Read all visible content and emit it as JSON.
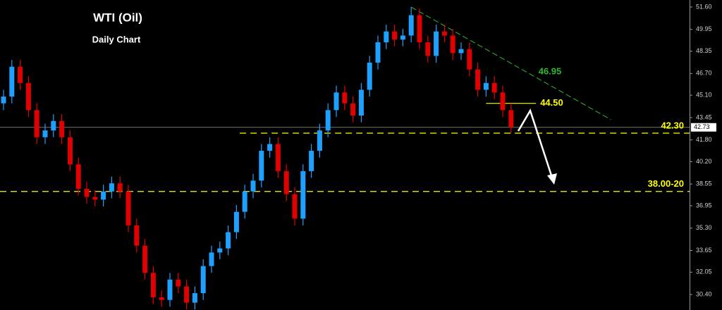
{
  "chart_data": {
    "type": "candlestick",
    "title": "WTI (Oil)",
    "subtitle": "Daily Chart",
    "up_color": "#1ea0ff",
    "down_color": "#e00000",
    "ylim": [
      29.26,
      52.12
    ],
    "yticks": [
      {
        "value": 51.6,
        "label": "51.60"
      },
      49.95,
      48.35,
      {
        "value": 46.7,
        "label": "46.70"
      },
      {
        "value": 45.1,
        "label": "45.10"
      },
      43.45,
      {
        "value": 41.8,
        "label": "41.80"
      },
      {
        "value": 40.2,
        "label": "40.20"
      },
      38.55,
      36.95,
      {
        "value": 35.3,
        "label": "35.30"
      },
      33.65,
      32.05,
      {
        "value": 30.4,
        "label": "30.40"
      }
    ],
    "open": [
      44.5,
      45.0,
      47.2,
      46.0,
      44.0,
      42.0,
      42.5,
      43.2,
      42.0,
      40.0,
      38.2,
      37.6,
      37.4,
      38.0,
      38.6,
      38.0,
      35.5,
      34.0,
      32.0,
      30.2,
      30.0,
      31.5,
      31.0,
      29.8,
      30.5,
      32.5,
      33.5,
      33.8,
      35.0,
      36.5,
      38.0,
      38.8,
      41.0,
      41.5,
      39.5,
      37.8,
      36.0,
      39.5,
      41.0,
      42.5,
      44.0,
      45.3,
      44.5,
      43.6,
      45.5,
      47.5,
      49.0,
      49.8,
      49.2,
      49.5,
      51.0,
      49.0,
      48.0,
      49.8,
      49.5,
      48.2,
      48.5,
      47.0,
      45.5,
      46.0,
      45.3,
      44.0
    ],
    "high": [
      45.5,
      47.7,
      47.7,
      46.5,
      44.5,
      43.0,
      43.7,
      43.7,
      42.5,
      40.5,
      38.7,
      38.1,
      38.5,
      39.1,
      39.1,
      38.5,
      36.0,
      34.5,
      32.5,
      30.7,
      32.0,
      32.0,
      31.5,
      31.0,
      33.0,
      34.0,
      34.3,
      35.5,
      37.0,
      38.5,
      39.3,
      41.5,
      42.0,
      42.0,
      40.0,
      38.3,
      40.0,
      41.5,
      43.0,
      44.5,
      45.8,
      45.8,
      45.0,
      46.0,
      48.0,
      49.5,
      50.3,
      50.3,
      50.0,
      51.6,
      51.5,
      49.5,
      50.3,
      50.3,
      50.0,
      49.0,
      49.0,
      47.5,
      46.5,
      46.5,
      45.8,
      44.5
    ],
    "low": [
      44.0,
      44.5,
      45.5,
      43.5,
      41.5,
      41.5,
      42.0,
      41.5,
      39.5,
      37.7,
      37.1,
      36.9,
      36.9,
      37.5,
      37.5,
      35.0,
      33.5,
      31.5,
      29.7,
      29.5,
      29.5,
      30.5,
      29.3,
      29.3,
      30.0,
      32.0,
      33.0,
      33.3,
      34.5,
      36.0,
      37.5,
      38.3,
      40.5,
      39.0,
      37.3,
      35.5,
      35.5,
      39.0,
      40.5,
      42.0,
      43.5,
      44.0,
      43.1,
      43.1,
      45.0,
      47.0,
      48.5,
      48.7,
      48.7,
      49.0,
      48.5,
      47.5,
      47.5,
      49.0,
      47.7,
      47.7,
      46.5,
      45.0,
      45.0,
      44.8,
      43.5,
      42.3
    ],
    "close": [
      45.0,
      47.2,
      46.0,
      44.0,
      42.0,
      42.5,
      43.2,
      42.0,
      40.0,
      38.2,
      37.6,
      37.4,
      38.0,
      38.6,
      38.0,
      35.5,
      34.0,
      32.0,
      30.2,
      30.0,
      31.5,
      31.0,
      29.8,
      30.5,
      32.5,
      33.5,
      33.8,
      35.0,
      36.5,
      38.0,
      38.8,
      41.0,
      41.5,
      39.5,
      37.8,
      36.0,
      39.5,
      41.0,
      42.5,
      44.0,
      45.3,
      44.5,
      43.6,
      45.5,
      47.5,
      49.0,
      49.8,
      49.2,
      49.5,
      51.0,
      49.0,
      48.0,
      49.8,
      49.5,
      48.2,
      48.5,
      47.0,
      45.5,
      46.0,
      45.3,
      44.0,
      42.73
    ],
    "last_price": 42.73,
    "trendline": {
      "label": "46.95",
      "color": "#2fb82f",
      "from": [
        49,
        51.6
      ],
      "to": [
        73,
        43.3
      ]
    },
    "levels": [
      {
        "label": "44.50",
        "value": 44.5,
        "from": 58,
        "to": 64,
        "color": "#ffff00"
      },
      {
        "label": "42.30",
        "value": 42.3,
        "from": 28.4,
        "color": "#ffff00"
      },
      {
        "label": "38.00-20",
        "value": 38.0,
        "color": "#ffff00"
      }
    ]
  }
}
